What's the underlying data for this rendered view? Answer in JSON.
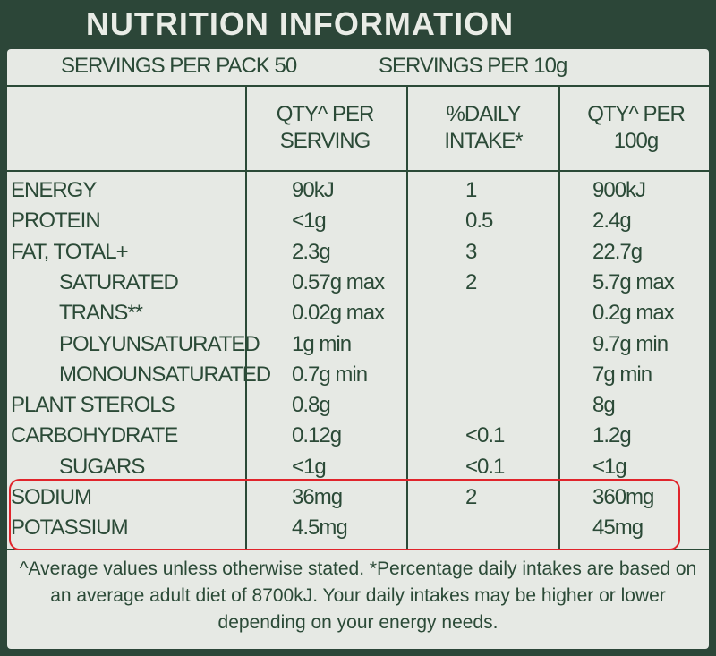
{
  "title": "NUTRITION INFORMATION",
  "servings": [
    "SERVINGS PER PACK 50",
    "SERVINGS PER 10g"
  ],
  "table": {
    "header": [
      "QTY^ PER SERVING",
      "%DAILY INTAKE*",
      "QTY^ PER 100g"
    ],
    "rows": [
      {
        "name": "ENERGY",
        "per_serving": "90kJ",
        "daily_intake": "1",
        "per_100g": "900kJ",
        "indent": false
      },
      {
        "name": "PROTEIN",
        "per_serving": "<1g",
        "daily_intake": "0.5",
        "per_100g": "2.4g",
        "indent": false
      },
      {
        "name": "FAT, TOTAL+",
        "per_serving": "2.3g",
        "daily_intake": "3",
        "per_100g": "22.7g",
        "indent": false
      },
      {
        "name": "SATURATED",
        "per_serving": "0.57g max",
        "daily_intake": "2",
        "per_100g": "5.7g max",
        "indent": true
      },
      {
        "name": "TRANS**",
        "per_serving": "0.02g max",
        "daily_intake": null,
        "per_100g": "0.2g max",
        "indent": true
      },
      {
        "name": "POLYUNSATURATED",
        "per_serving": "1g min",
        "daily_intake": null,
        "per_100g": "9.7g min",
        "indent": true
      },
      {
        "name": "MONOUNSATURATED",
        "per_serving": "0.7g min",
        "daily_intake": null,
        "per_100g": "7g min",
        "indent": true
      },
      {
        "name": "PLANT STEROLS",
        "per_serving": "0.8g",
        "daily_intake": null,
        "per_100g": "8g",
        "indent": false
      },
      {
        "name": "CARBOHYDRATE",
        "per_serving": "0.12g",
        "daily_intake": "<0.1",
        "per_100g": "1.2g",
        "indent": false
      },
      {
        "name": "SUGARS",
        "per_serving": "<1g",
        "daily_intake": "<0.1",
        "per_100g": "<1g",
        "indent": true
      },
      {
        "name": "SODIUM",
        "per_serving": "36mg",
        "daily_intake": "2",
        "per_100g": "360mg",
        "indent": false
      },
      {
        "name": "POTASSIUM",
        "per_serving": "4.5mg",
        "daily_intake": null,
        "per_100g": "45mg",
        "indent": false
      }
    ]
  },
  "footnote": "^Average values unless otherwise stated. *Percentage daily intakes are based on an average adult diet of 8700kJ. Your daily intakes may be higher or lower depending on your energy needs."
}
